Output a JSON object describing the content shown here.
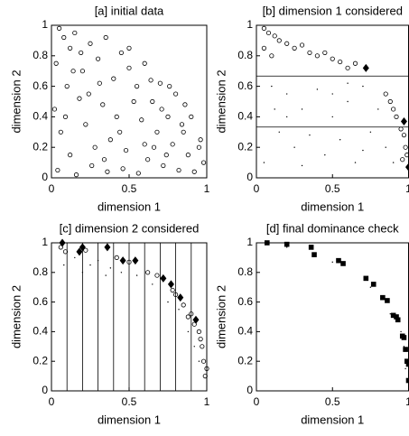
{
  "chart_data": [
    {
      "type": "scatter",
      "title": "[a] initial data",
      "x_label": "dimension 1",
      "y_label": "dimension 2",
      "xlim": [
        0,
        1
      ],
      "ylim": [
        0,
        1
      ],
      "xticks": [
        0,
        0.5,
        1
      ],
      "yticks": [
        0,
        0.2,
        0.4,
        0.6,
        0.8,
        1
      ],
      "series": [
        {
          "marker": "o",
          "color": "#000000",
          "x": [
            0.05,
            0.08,
            0.12,
            0.03,
            0.15,
            0.2,
            0.25,
            0.1,
            0.3,
            0.35,
            0.02,
            0.18,
            0.4,
            0.45,
            0.5,
            0.55,
            0.6,
            0.65,
            0.7,
            0.75,
            0.8,
            0.85,
            0.9,
            0.95,
            0.98,
            0.06,
            0.22,
            0.33,
            0.42,
            0.58,
            0.68,
            0.78,
            0.88,
            0.12,
            0.28,
            0.38,
            0.48,
            0.62,
            0.72,
            0.82,
            0.92,
            0.04,
            0.16,
            0.26,
            0.36,
            0.46,
            0.56,
            0.66,
            0.76,
            0.86,
            0.96,
            0.09,
            0.19,
            0.31,
            0.44,
            0.53,
            0.64,
            0.71,
            0.84,
            0.14,
            0.24,
            0.34,
            0.5,
            0.6,
            0.74
          ],
          "y": [
            0.98,
            0.92,
            0.85,
            0.75,
            0.95,
            0.7,
            0.88,
            0.6,
            0.78,
            0.92,
            0.45,
            0.52,
            0.65,
            0.82,
            0.72,
            0.6,
            0.75,
            0.5,
            0.62,
            0.4,
            0.55,
            0.3,
            0.4,
            0.2,
            0.1,
            0.3,
            0.35,
            0.48,
            0.4,
            0.38,
            0.3,
            0.22,
            0.15,
            0.15,
            0.2,
            0.25,
            0.18,
            0.12,
            0.08,
            0.05,
            0.04,
            0.05,
            0.02,
            0.08,
            0.04,
            0.06,
            0.03,
            0.2,
            0.6,
            0.48,
            0.25,
            0.4,
            0.82,
            0.62,
            0.3,
            0.5,
            0.64,
            0.45,
            0.35,
            0.7,
            0.55,
            0.12,
            0.85,
            0.22,
            0.15
          ]
        }
      ]
    },
    {
      "type": "scatter",
      "title": "[b] dimension 1 considered",
      "x_label": "dimension 1",
      "y_label": "dimension 2",
      "xlim": [
        0,
        1
      ],
      "ylim": [
        0,
        1
      ],
      "xticks": [
        0,
        0.5,
        1
      ],
      "yticks": [
        0,
        0.2,
        0.4,
        0.6,
        0.8,
        1
      ],
      "hlines": [
        0.667,
        0.333
      ],
      "series": [
        {
          "marker": "o",
          "color": "#000000",
          "x": [
            0.05,
            0.08,
            0.12,
            0.15,
            0.2,
            0.25,
            0.3,
            0.35,
            0.4,
            0.45,
            0.5,
            0.55,
            0.6,
            0.65,
            0.05,
            0.1,
            0.88,
            0.9,
            0.92,
            0.95,
            0.97,
            0.98,
            0.99,
            0.96,
            0.85
          ],
          "y": [
            0.98,
            0.95,
            0.93,
            0.9,
            0.88,
            0.85,
            0.87,
            0.82,
            0.8,
            0.82,
            0.78,
            0.76,
            0.72,
            0.75,
            0.85,
            0.8,
            0.5,
            0.45,
            0.4,
            0.32,
            0.28,
            0.2,
            0.15,
            0.12,
            0.55
          ]
        },
        {
          "marker": "D",
          "color": "#000000",
          "x": [
            0.72,
            0.97,
            1.0
          ],
          "y": [
            0.72,
            0.37,
            0.07
          ]
        },
        {
          "marker": ".",
          "color": "#000000",
          "x": [
            0.1,
            0.2,
            0.3,
            0.4,
            0.5,
            0.6,
            0.7,
            0.8,
            0.15,
            0.25,
            0.35,
            0.45,
            0.55,
            0.65,
            0.75,
            0.85,
            0.05,
            0.12,
            0.6,
            0.3,
            0.5,
            0.7,
            0.9,
            0.2
          ],
          "y": [
            0.6,
            0.55,
            0.45,
            0.58,
            0.4,
            0.5,
            0.6,
            0.45,
            0.3,
            0.2,
            0.28,
            0.15,
            0.25,
            0.1,
            0.3,
            0.2,
            0.1,
            0.45,
            0.62,
            0.08,
            0.55,
            0.18,
            0.1,
            0.4
          ]
        }
      ]
    },
    {
      "type": "scatter",
      "title": "[c] dimension 2 considered",
      "x_label": "dimension 1",
      "y_label": "dimension 2",
      "xlim": [
        0,
        1
      ],
      "ylim": [
        0,
        1
      ],
      "xticks": [
        0,
        0.5,
        1
      ],
      "yticks": [
        0,
        0.2,
        0.4,
        0.6,
        0.8,
        1
      ],
      "vlines": [
        0.1,
        0.2,
        0.3,
        0.4,
        0.5,
        0.6,
        0.7,
        0.8,
        0.9
      ],
      "series": [
        {
          "marker": "o",
          "color": "#000000",
          "x": [
            0.06,
            0.09,
            0.22,
            0.42,
            0.5,
            0.62,
            0.68,
            0.78,
            0.85,
            0.88,
            0.9,
            0.95,
            0.97,
            0.98,
            0.99,
            1.0,
            0.96,
            0.92,
            0.8
          ],
          "y": [
            0.97,
            0.94,
            0.95,
            0.9,
            0.87,
            0.8,
            0.78,
            0.68,
            0.58,
            0.5,
            0.52,
            0.4,
            0.3,
            0.2,
            0.1,
            0.15,
            0.35,
            0.45,
            0.65
          ]
        },
        {
          "marker": "D",
          "color": "#000000",
          "x": [
            0.07,
            0.2,
            0.18,
            0.36,
            0.46,
            0.54,
            0.72,
            0.77,
            0.83,
            0.93
          ],
          "y": [
            1.0,
            0.97,
            0.94,
            0.97,
            0.88,
            0.88,
            0.76,
            0.72,
            0.63,
            0.48
          ]
        },
        {
          "marker": ".",
          "color": "#000000",
          "x": [
            0.08,
            0.15,
            0.25,
            0.3,
            0.38,
            0.45,
            0.55,
            0.65,
            0.75,
            0.82,
            0.88,
            0.92,
            0.2,
            0.35,
            0.95
          ],
          "y": [
            0.85,
            0.9,
            0.85,
            0.88,
            0.83,
            0.8,
            0.78,
            0.72,
            0.6,
            0.55,
            0.4,
            0.3,
            0.8,
            0.78,
            0.2
          ]
        }
      ]
    },
    {
      "type": "scatter",
      "title": "[d] final dominance check",
      "x_label": "dimension 1",
      "y_label": "dimension 2",
      "xlim": [
        0,
        1
      ],
      "ylim": [
        0,
        1
      ],
      "xticks": [
        0,
        0.5,
        1
      ],
      "yticks": [
        0,
        0.2,
        0.4,
        0.6,
        0.8,
        1
      ],
      "series": [
        {
          "marker": "s",
          "color": "#000000",
          "x": [
            0.07,
            0.2,
            0.36,
            0.38,
            0.54,
            0.57,
            0.72,
            0.77,
            0.83,
            0.86,
            0.9,
            0.92,
            0.93,
            0.96,
            0.97,
            0.98,
            0.99,
            1.0,
            1.0
          ],
          "y": [
            1.0,
            0.99,
            0.97,
            0.92,
            0.88,
            0.86,
            0.76,
            0.72,
            0.63,
            0.61,
            0.51,
            0.5,
            0.48,
            0.37,
            0.36,
            0.28,
            0.2,
            0.18,
            0.07
          ]
        },
        {
          "marker": ".",
          "color": "#000000",
          "x": [
            0.2,
            0.5,
            0.75,
            0.88,
            0.95,
            0.97,
            0.98
          ],
          "y": [
            0.97,
            0.87,
            0.7,
            0.52,
            0.4,
            0.3,
            0.15
          ]
        }
      ]
    }
  ]
}
